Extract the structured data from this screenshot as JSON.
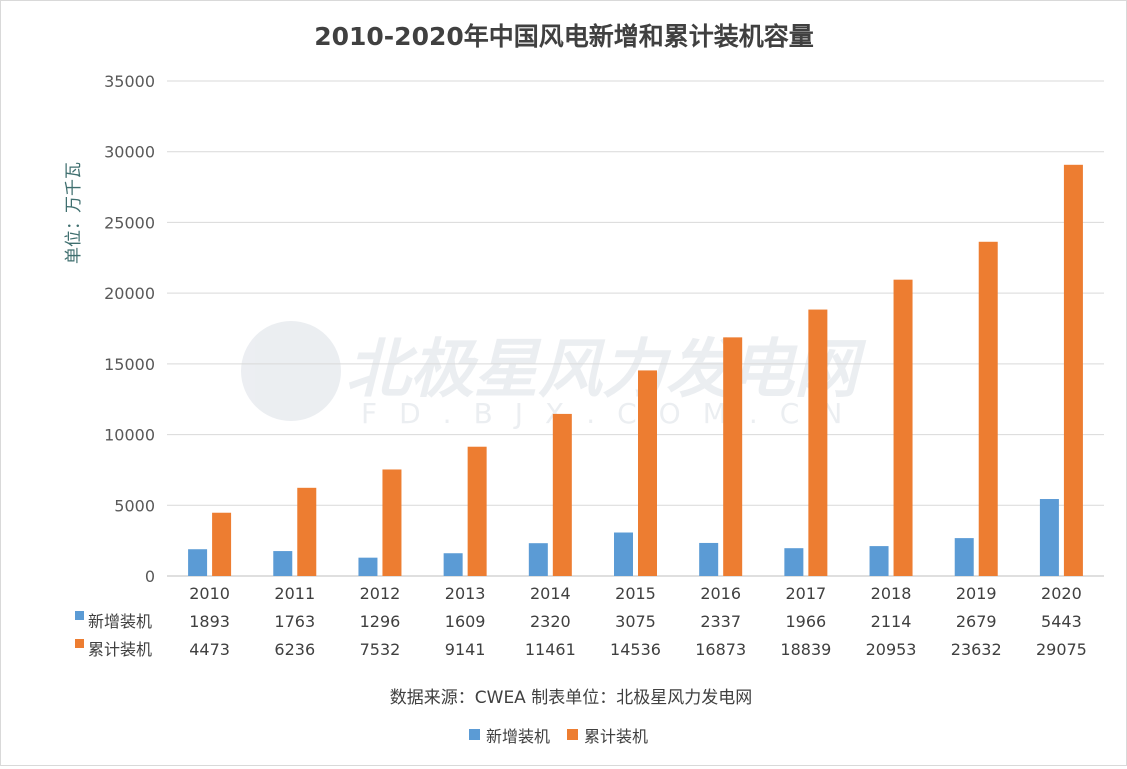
{
  "chart_data": {
    "type": "bar",
    "title": "2010-2020年中国风电新增和累计装机容量",
    "ylabel": "单位：万千瓦",
    "ylim": [
      0,
      35000
    ],
    "yticks": [
      0,
      5000,
      10000,
      15000,
      20000,
      25000,
      30000,
      35000
    ],
    "grid": true,
    "categories": [
      "2010",
      "2011",
      "2012",
      "2013",
      "2014",
      "2015",
      "2016",
      "2017",
      "2018",
      "2019",
      "2020"
    ],
    "series": [
      {
        "name": "新增装机",
        "color": "#5b9bd5",
        "values": [
          1893,
          1763,
          1296,
          1609,
          2320,
          3075,
          2337,
          1966,
          2114,
          2679,
          5443
        ]
      },
      {
        "name": "累计装机",
        "color": "#ed7d31",
        "values": [
          4473,
          6236,
          7532,
          9141,
          11461,
          14536,
          16873,
          18839,
          20953,
          23632,
          29075
        ]
      }
    ],
    "data_table": true,
    "source_note": "数据来源：CWEA 制表单位：北极星风力发电网",
    "legend_placement": "bottom",
    "watermark": {
      "text": "北极星风力发电网",
      "subtext": "FD.BJX.COM.CN"
    }
  }
}
